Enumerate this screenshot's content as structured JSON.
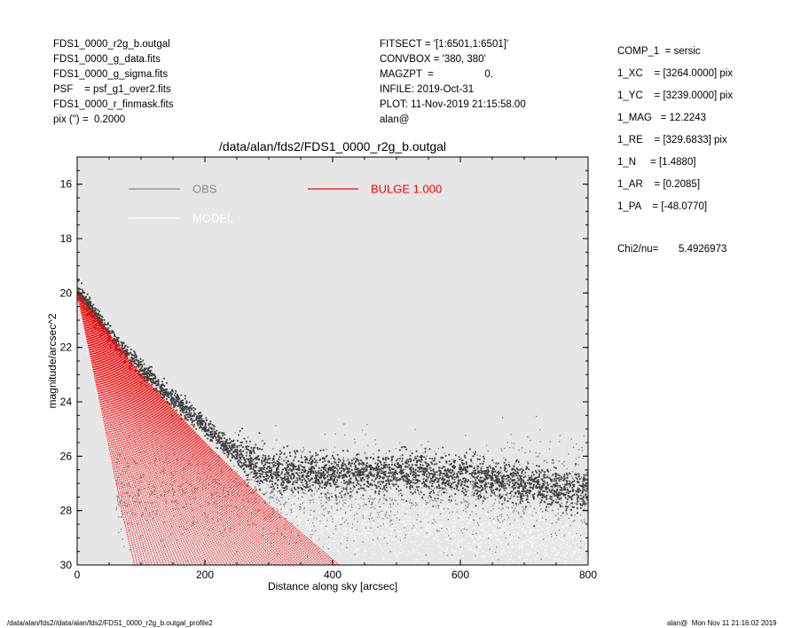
{
  "header": {
    "left": [
      "FDS1_0000_r2g_b.outgal",
      "FDS1_0000_g_data.fits",
      "FDS1_0000_g_sigma.fits",
      "PSF    = psf_g1_over2.fits",
      "FDS1_0000_r_finmask.fits",
      "pix (\") =  0.2000"
    ],
    "middle": [
      "FITSECT = '[1:6501,1:6501]'",
      "CONVBOX = '380, 380'",
      "MAGZPT  =                  0.",
      "INFILE: 2019-Oct-31",
      "PLOT: 11-Nov-2019 21:15:58.00",
      "alan@"
    ],
    "right": [
      "COMP_1  = sersic",
      "1_XC    = [3264.0000] pix",
      "1_YC    = [3239.0000] pix",
      "1_MAG   = 12.2243",
      "1_RE    = [329.6833] pix",
      "1_N     = [1.4880]",
      "1_AR    = [0.2085]",
      "1_PA    = [-48.0770]"
    ],
    "chi2_label": "Chi2/nu=",
    "chi2_value": "5.4926973"
  },
  "footer": {
    "left": "/data/alan/fds2//data/alan/fds2/FDS1_0000_r2g_b.outgal_profile2",
    "right": "alan@  Mon Nov 11 21:16:02 2019"
  },
  "chart_data": {
    "type": "scatter",
    "title": "/data/alan/fds2/FDS1_0000_r2g_b.outgal",
    "xlabel": "Distance along sky [arcsec]",
    "ylabel": "magnitude/arcsec^2",
    "xlim": [
      0,
      800
    ],
    "ylim": [
      30,
      15
    ],
    "xticks": [
      0,
      200,
      400,
      600,
      800
    ],
    "yticks": [
      16,
      18,
      20,
      22,
      24,
      26,
      28,
      30
    ],
    "background": "#e6e6e6",
    "grid": false,
    "legend": [
      {
        "label": "OBS",
        "color": "#888888"
      },
      {
        "label": "MODEL",
        "color": "#ffffff"
      },
      {
        "label": "BULGE  1.000",
        "color": "#ff0000"
      }
    ],
    "series": [
      {
        "name": "OBS",
        "color": "#404040",
        "description_points": [
          {
            "x": 0,
            "y": 19.9
          },
          {
            "x": 25,
            "y": 20.7
          },
          {
            "x": 50,
            "y": 21.5
          },
          {
            "x": 100,
            "y": 22.8
          },
          {
            "x": 150,
            "y": 23.9
          },
          {
            "x": 200,
            "y": 24.9
          },
          {
            "x": 250,
            "y": 25.9
          },
          {
            "x": 300,
            "y": 26.5
          },
          {
            "x": 400,
            "y": 26.6
          },
          {
            "x": 500,
            "y": 26.6
          },
          {
            "x": 600,
            "y": 26.7
          },
          {
            "x": 700,
            "y": 27.0
          },
          {
            "x": 800,
            "y": 27.3
          }
        ]
      },
      {
        "name": "MODEL",
        "color": "#ffffff",
        "description_points": [
          {
            "x": 0,
            "y": 20.0
          },
          {
            "x": 50,
            "y": 25.0
          },
          {
            "x": 100,
            "y": 27.3
          },
          {
            "x": 200,
            "y": 28.0
          },
          {
            "x": 400,
            "y": 28.3
          },
          {
            "x": 600,
            "y": 28.7
          },
          {
            "x": 800,
            "y": 29.0
          }
        ]
      },
      {
        "name": "BULGE  1.000",
        "color": "#ff0000",
        "upper_envelope": [
          {
            "x": 0,
            "y": 20.0
          },
          {
            "x": 100,
            "y": 23.0
          },
          {
            "x": 200,
            "y": 25.5
          },
          {
            "x": 300,
            "y": 27.8
          },
          {
            "x": 400,
            "y": 29.8
          },
          {
            "x": 410,
            "y": 30.0
          }
        ],
        "lower_envelope": [
          {
            "x": 0,
            "y": 20.0
          },
          {
            "x": 40,
            "y": 24.5
          },
          {
            "x": 70,
            "y": 28.0
          },
          {
            "x": 90,
            "y": 30.0
          }
        ]
      }
    ]
  }
}
